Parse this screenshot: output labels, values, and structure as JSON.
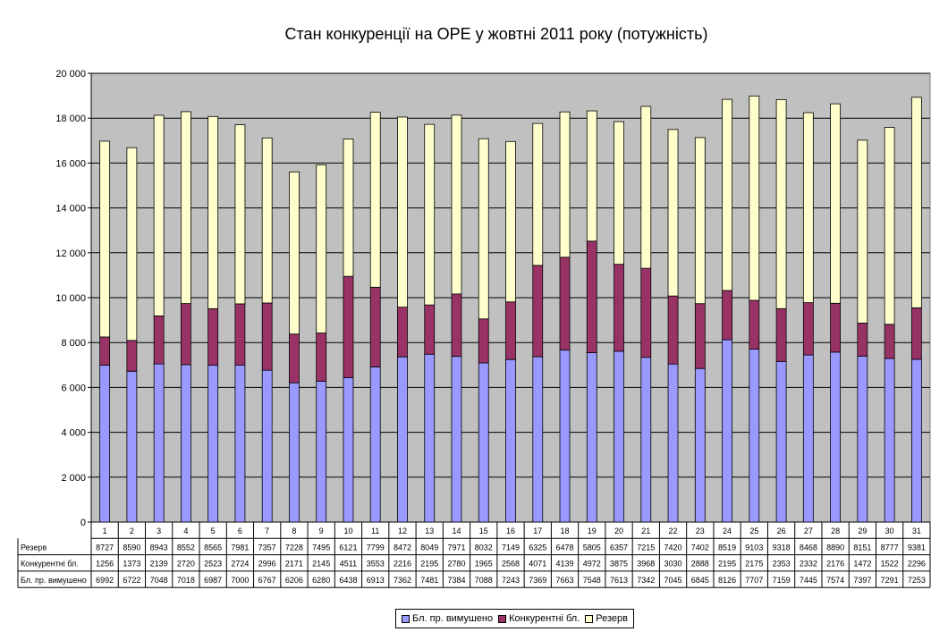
{
  "chart_data": {
    "type": "bar",
    "stacked": true,
    "title": "Стан конкуренції на ОРЕ  у жовтні 2011 року (потужність)",
    "ylim": [
      0,
      20000
    ],
    "yticks": [
      "0",
      "2 000",
      "4 000",
      "6 000",
      "8 000",
      "10 000",
      "12 000",
      "14 000",
      "16 000",
      "18 000",
      "20 000"
    ],
    "grid": true,
    "legend_position": "bottom",
    "categories": [
      "1",
      "2",
      "3",
      "4",
      "5",
      "6",
      "7",
      "8",
      "9",
      "10",
      "11",
      "12",
      "13",
      "14",
      "15",
      "16",
      "17",
      "18",
      "19",
      "20",
      "21",
      "22",
      "23",
      "24",
      "25",
      "26",
      "27",
      "28",
      "29",
      "30",
      "31"
    ],
    "series": [
      {
        "name": "Бл. пр. вимушено",
        "color": "#9999ff",
        "values": [
          6992,
          6722,
          7048,
          7018,
          6987,
          7000,
          6767,
          6206,
          6280,
          6438,
          6913,
          7362,
          7481,
          7384,
          7088,
          7243,
          7369,
          7663,
          7548,
          7613,
          7342,
          7045,
          6845,
          8126,
          7707,
          7159,
          7445,
          7574,
          7397,
          7291,
          7253
        ]
      },
      {
        "name": "Конкурентні бл.",
        "color": "#993366",
        "values": [
          1256,
          1373,
          2139,
          2720,
          2523,
          2724,
          2996,
          2171,
          2145,
          4511,
          3553,
          2216,
          2195,
          2780,
          1965,
          2568,
          4071,
          4139,
          4972,
          3875,
          3968,
          3030,
          2888,
          2195,
          2175,
          2353,
          2332,
          2176,
          1472,
          1522,
          2296
        ]
      },
      {
        "name": "Резерв",
        "color": "#ffffcc",
        "values": [
          8727,
          8590,
          8943,
          8552,
          8565,
          7981,
          7357,
          7228,
          7495,
          6121,
          7799,
          8472,
          8049,
          7971,
          8032,
          7149,
          6325,
          6478,
          5805,
          6357,
          7215,
          7420,
          7402,
          8519,
          9103,
          9318,
          8468,
          8890,
          8151,
          8777,
          9381
        ]
      }
    ],
    "table_row_order": [
      "Резерв",
      "Конкурентні бл.",
      "Бл. пр. вимушено"
    ],
    "legend_order": [
      "Бл. пр. вимушено",
      "Конкурентні бл.",
      "Резерв"
    ]
  },
  "colors": {
    "plot_background": "#c0c0c0",
    "gridline": "#000000"
  }
}
